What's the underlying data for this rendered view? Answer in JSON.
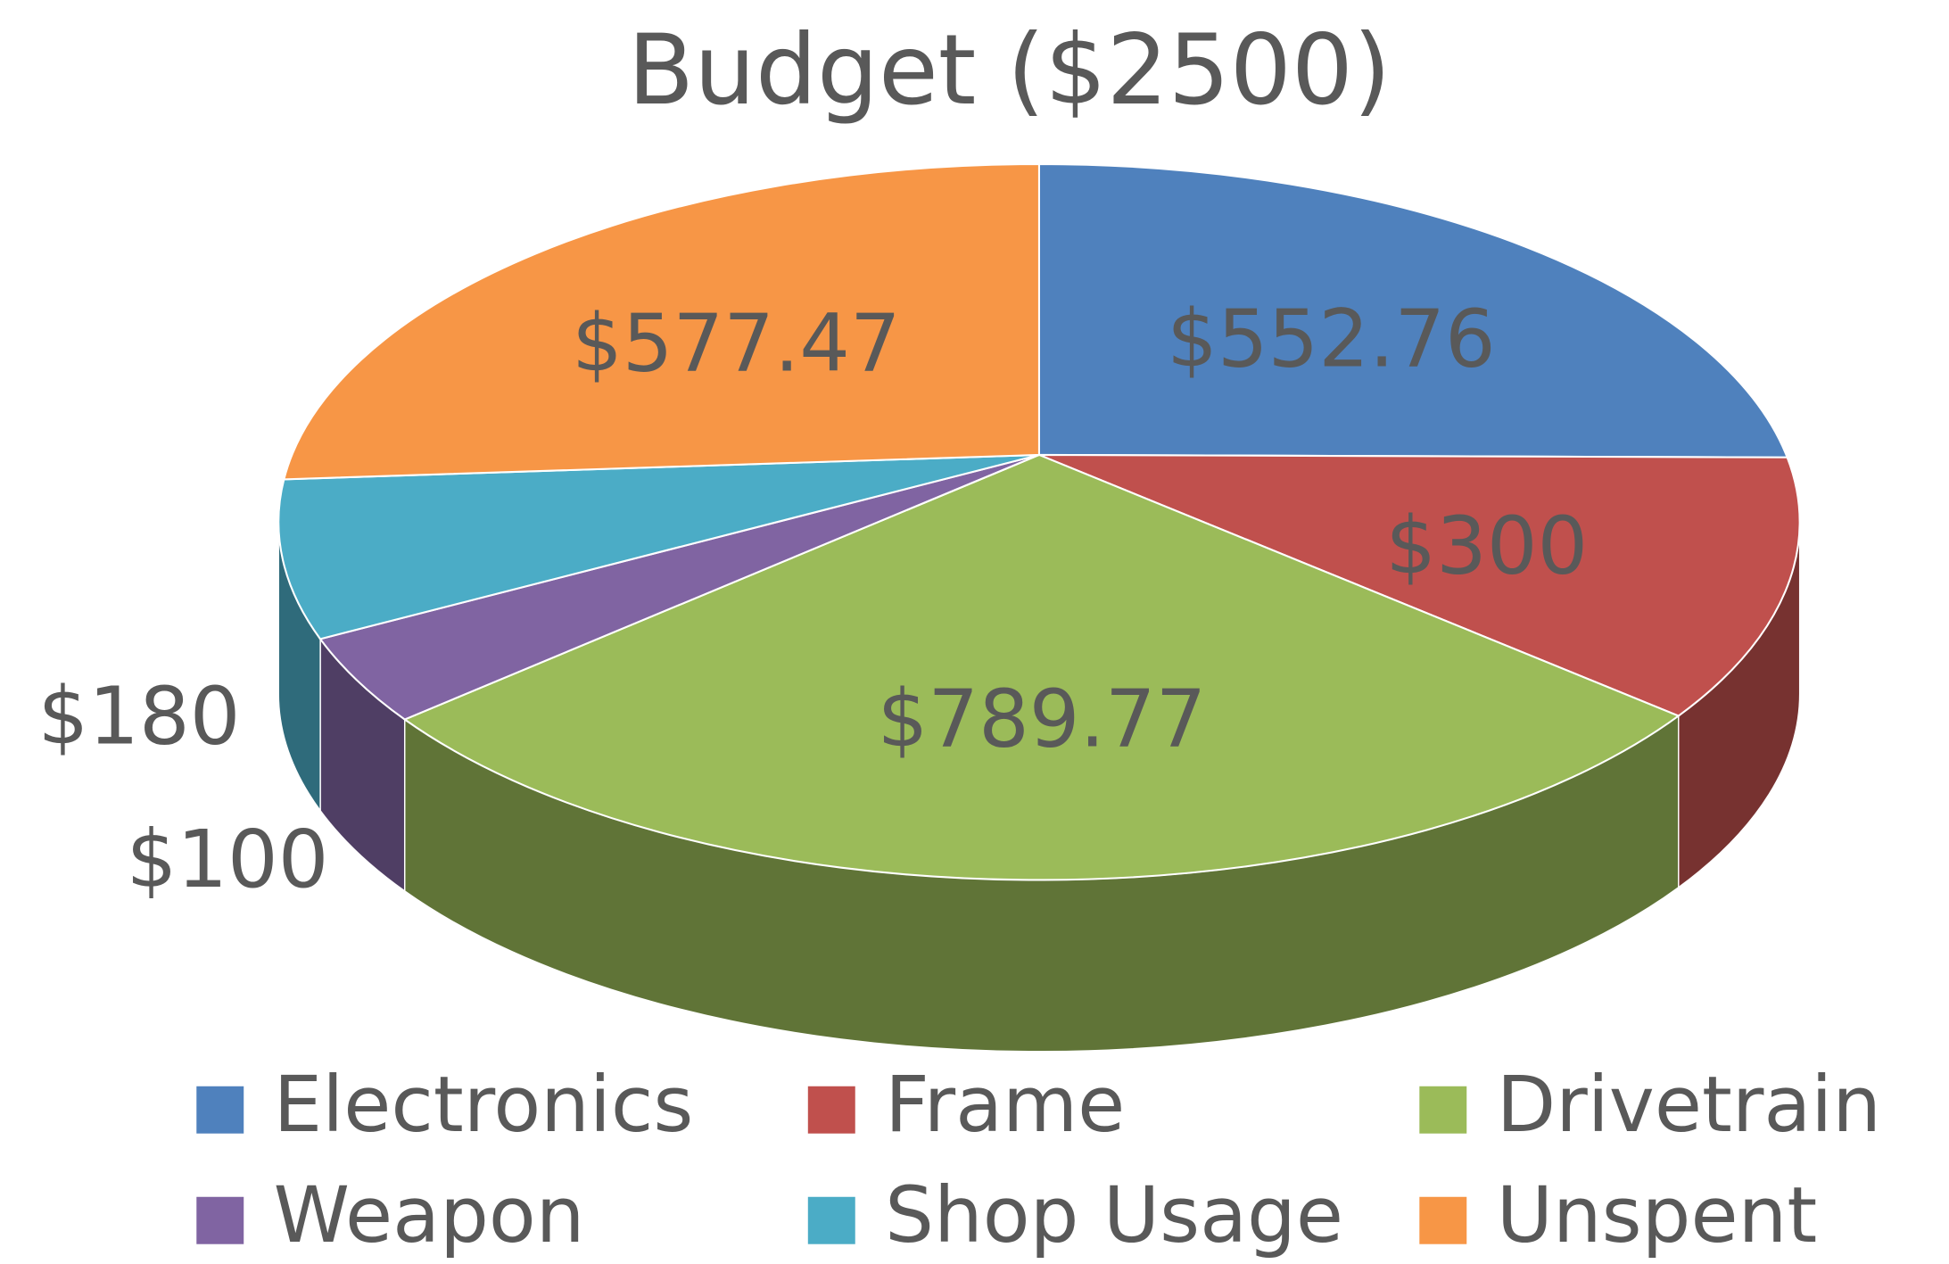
{
  "chart_data": {
    "type": "pie",
    "title": "Budget ($2500)",
    "categories": [
      "Electronics",
      "Frame",
      "Drivetrain",
      "Weapon",
      "Shop Usage",
      "Unspent"
    ],
    "values": [
      552.76,
      300,
      789.77,
      100,
      180,
      577.47
    ],
    "value_labels": [
      "$552.76",
      "$300",
      "$789.77",
      "$100",
      "$180",
      "$577.47"
    ],
    "colors": [
      "#4f81bd",
      "#c0504d",
      "#9bbb59",
      "#8064a2",
      "#4bacc6",
      "#f79646"
    ],
    "legend": "bottom"
  }
}
